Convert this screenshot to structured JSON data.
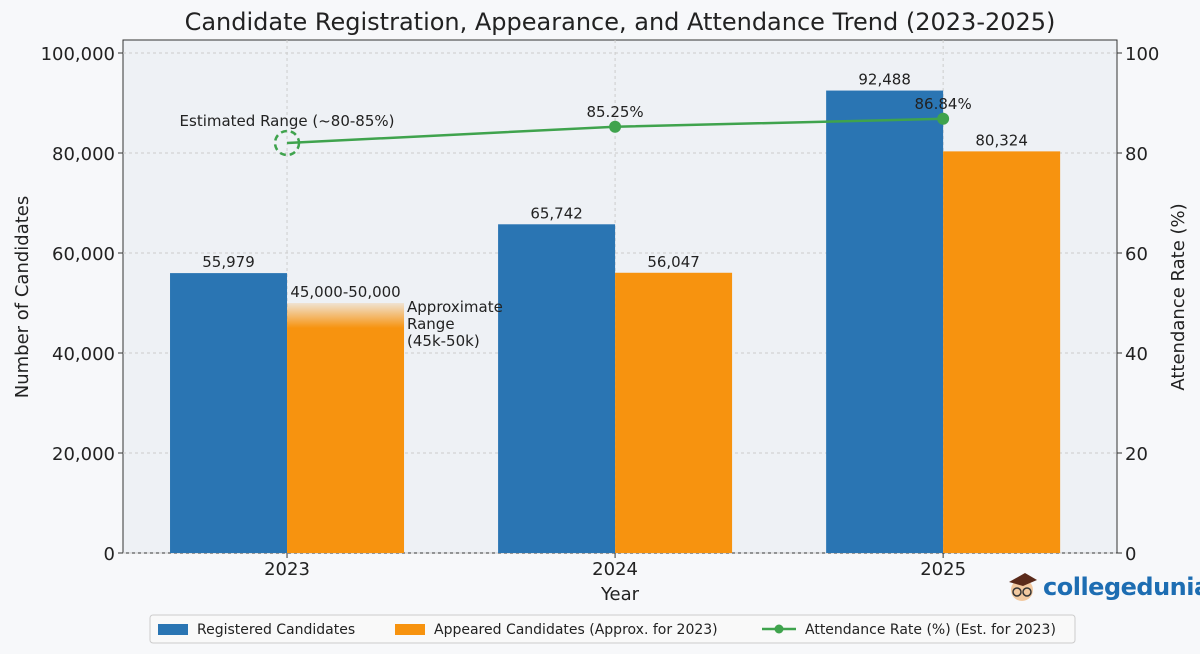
{
  "chart_data": {
    "type": "bar",
    "title": "Candidate Registration, Appearance, and Attendance Trend (2023-2025)",
    "xlabel": "Year",
    "ylabel": "Number of Candidates",
    "y2label": "Attendance Rate (%)",
    "categories": [
      "2023",
      "2024",
      "2025"
    ],
    "xlim": [
      -0.5,
      2.53
    ],
    "ylim": [
      0,
      100000
    ],
    "y2lim": [
      0,
      100
    ],
    "yticks": [
      0,
      20000,
      40000,
      60000,
      80000,
      100000
    ],
    "ytick_labels": [
      "0",
      "20,000",
      "40,000",
      "60,000",
      "80,000",
      "100,000"
    ],
    "y2ticks": [
      0,
      20,
      40,
      60,
      80,
      100
    ],
    "y2tick_labels": [
      "0",
      "20",
      "40",
      "60",
      "80",
      "100"
    ],
    "grid": true,
    "legend_position": "bottom",
    "series": [
      {
        "name": "Registered Candidates",
        "type": "bar",
        "color": "#2a75b3",
        "values": [
          55979,
          65742,
          92488
        ],
        "labels": [
          "55,979",
          "65,742",
          "92,488"
        ]
      },
      {
        "name": "Appeared Candidates (Approx. for 2023)",
        "type": "bar",
        "color": "#f7930f",
        "values": [
          45000,
          56047,
          80324
        ],
        "range_2023": [
          45000,
          50000
        ],
        "labels": [
          "45,000-50,000",
          "56,047",
          "80,324"
        ]
      },
      {
        "name": "Attendance Rate (%) (Est. for 2023)",
        "type": "line",
        "axis": "right",
        "color": "#3fa34d",
        "values": [
          82,
          85.25,
          86.84
        ],
        "labels": [
          "",
          "85.25%",
          "86.84%"
        ]
      }
    ],
    "annotations": [
      {
        "text": "Estimated Range (~80-85%)"
      },
      {
        "lines": [
          "Approximate",
          "Range",
          "(45k-50k)"
        ]
      }
    ]
  },
  "logo": {
    "text": "collegedunia"
  }
}
